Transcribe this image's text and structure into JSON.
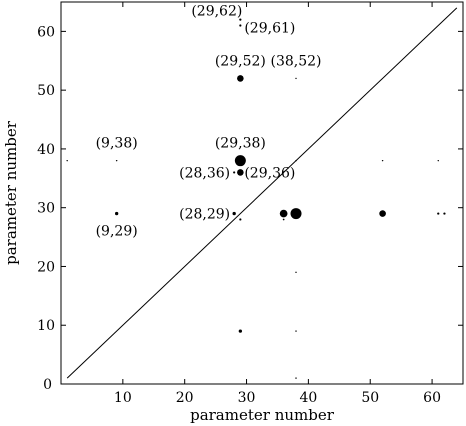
{
  "chart_data": {
    "type": "scatter",
    "xlabel": "parameter number",
    "ylabel": "parameter number",
    "xlim": [
      0,
      65
    ],
    "ylim": [
      0,
      65
    ],
    "x_ticks": [
      10,
      20,
      30,
      40,
      50,
      60
    ],
    "y_ticks": [
      0,
      10,
      20,
      30,
      40,
      50,
      60
    ],
    "grid": false,
    "diagonal_line": {
      "from": [
        1,
        1
      ],
      "to": [
        64,
        64
      ]
    },
    "points": [
      {
        "x": 29,
        "y": 62,
        "size": 1
      },
      {
        "x": 29,
        "y": 61,
        "size": 1
      },
      {
        "x": 29,
        "y": 52,
        "size": 3
      },
      {
        "x": 38,
        "y": 52,
        "size": 0.5
      },
      {
        "x": 1,
        "y": 38,
        "size": 0.3
      },
      {
        "x": 9,
        "y": 38,
        "size": 0.5
      },
      {
        "x": 29,
        "y": 38,
        "size": 5
      },
      {
        "x": 38,
        "y": 38,
        "size": 0.3
      },
      {
        "x": 52,
        "y": 38,
        "size": 0.5
      },
      {
        "x": 61,
        "y": 38,
        "size": 0.4
      },
      {
        "x": 28,
        "y": 36,
        "size": 1
      },
      {
        "x": 29,
        "y": 36,
        "size": 3
      },
      {
        "x": 9,
        "y": 29,
        "size": 1.5
      },
      {
        "x": 28,
        "y": 29,
        "size": 1.5
      },
      {
        "x": 36,
        "y": 29,
        "size": 3.5
      },
      {
        "x": 38,
        "y": 29,
        "size": 5
      },
      {
        "x": 52,
        "y": 29,
        "size": 3
      },
      {
        "x": 61,
        "y": 29,
        "size": 1
      },
      {
        "x": 62,
        "y": 29,
        "size": 1
      },
      {
        "x": 29,
        "y": 28,
        "size": 1
      },
      {
        "x": 36,
        "y": 28,
        "size": 0.8
      },
      {
        "x": 38,
        "y": 19,
        "size": 0.3
      },
      {
        "x": 29,
        "y": 9,
        "size": 1.5
      },
      {
        "x": 38,
        "y": 9,
        "size": 0.5
      },
      {
        "x": 38,
        "y": 1,
        "size": 0.3
      }
    ],
    "annotations": [
      {
        "text": "(29,62)",
        "x": 29,
        "y": 62,
        "anchor": "left"
      },
      {
        "text": "(29,61)",
        "x": 29,
        "y": 61,
        "anchor": "right"
      },
      {
        "text": "(29,52)",
        "x": 29,
        "y": 52,
        "anchor": "above"
      },
      {
        "text": "(38,52)",
        "x": 38,
        "y": 52,
        "anchor": "above"
      },
      {
        "text": "(9,38)",
        "x": 9,
        "y": 38,
        "anchor": "above"
      },
      {
        "text": "(29,38)",
        "x": 29,
        "y": 38,
        "anchor": "above"
      },
      {
        "text": "(28,36)",
        "x": 28,
        "y": 36,
        "anchor": "left"
      },
      {
        "text": "(29,36)",
        "x": 29,
        "y": 36,
        "anchor": "right"
      },
      {
        "text": "(28,29)",
        "x": 28,
        "y": 29,
        "anchor": "left"
      },
      {
        "text": "(9,29)",
        "x": 9,
        "y": 29,
        "anchor": "below"
      }
    ]
  }
}
